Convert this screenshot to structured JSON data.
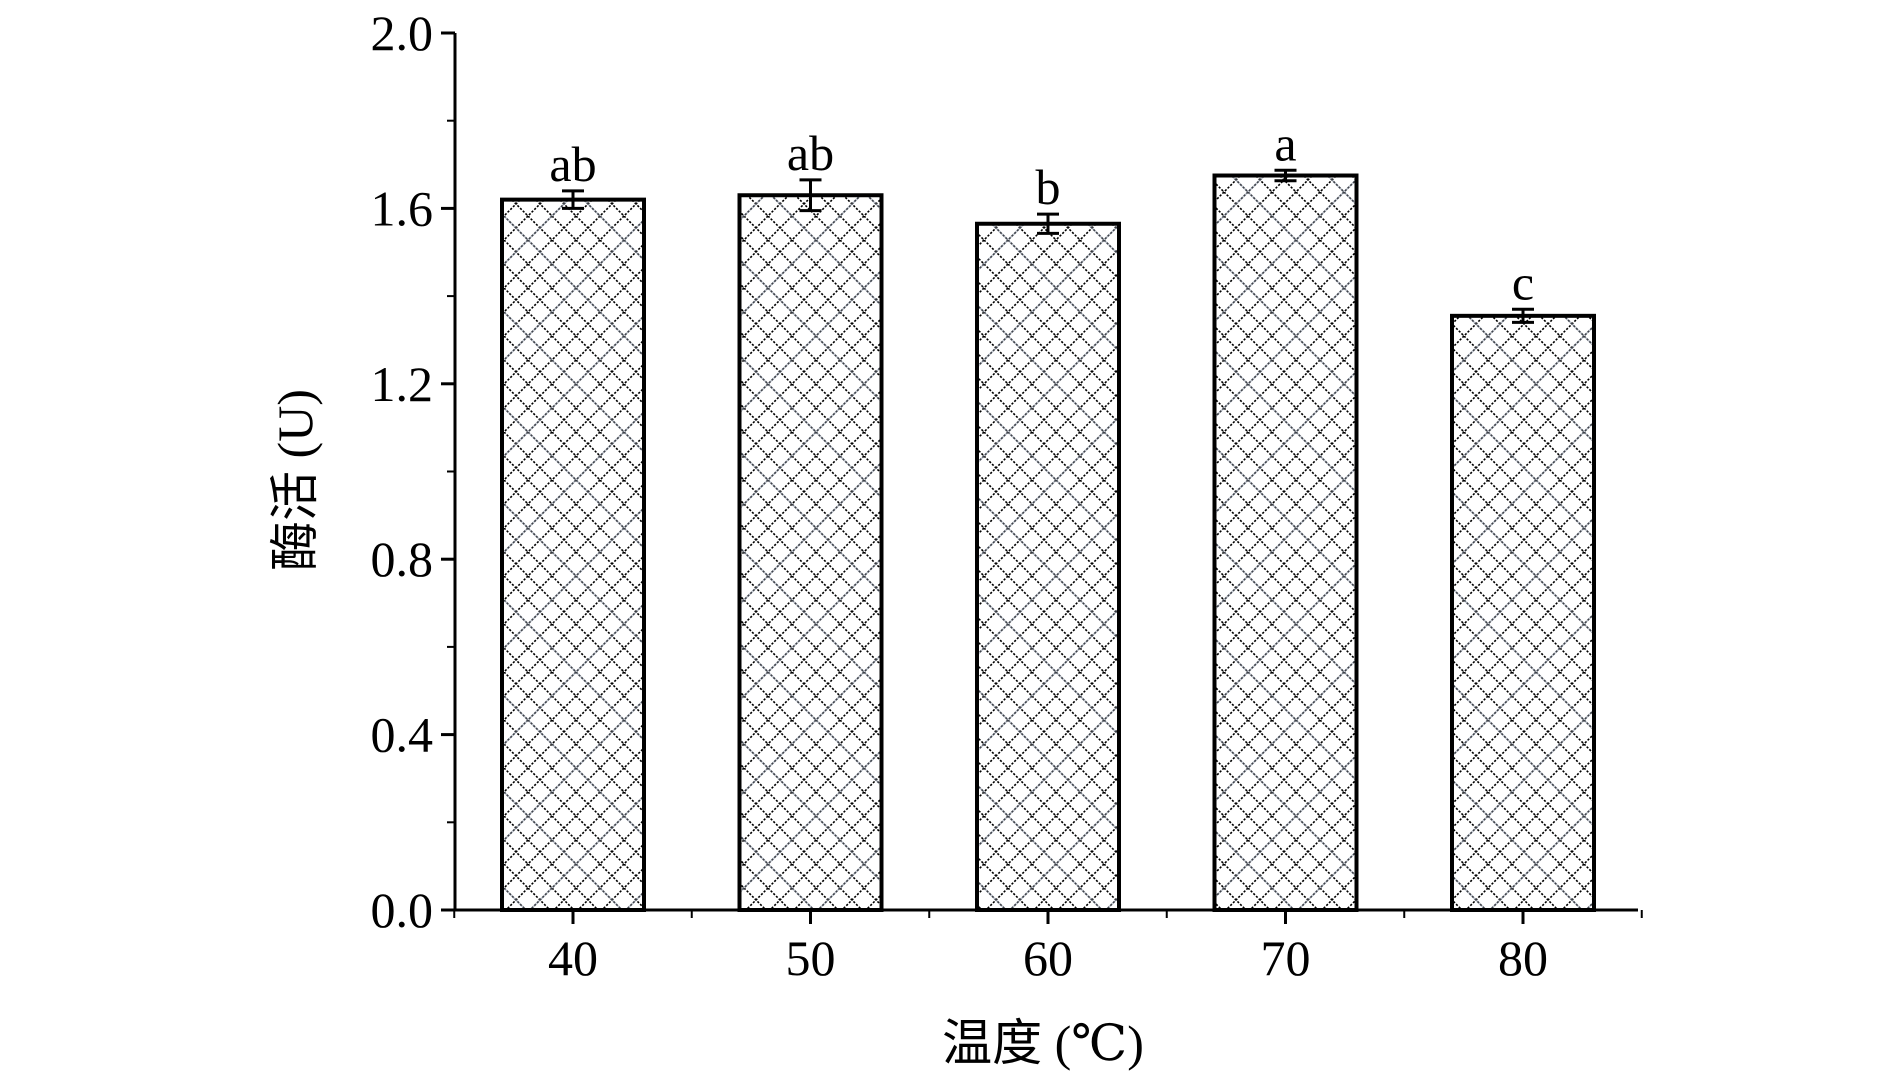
{
  "chart_data": {
    "type": "bar",
    "title": "",
    "xlabel": "温度 (℃)",
    "ylabel": "酶活 (U)",
    "categories": [
      "40",
      "50",
      "60",
      "70",
      "80"
    ],
    "values": [
      1.62,
      1.63,
      1.565,
      1.675,
      1.355
    ],
    "errors": [
      0.02,
      0.035,
      0.022,
      0.012,
      0.015
    ],
    "significance_labels": [
      "ab",
      "ab",
      "b",
      "a",
      "c"
    ],
    "ylim": [
      0.0,
      2.0
    ],
    "yticks": [
      "0.0",
      "0.4",
      "0.8",
      "1.2",
      "1.6",
      "2.0"
    ],
    "grid": false,
    "legend": "none",
    "bar_fill": "crosshatch",
    "colors": {
      "bar_stroke": "#000000",
      "hatch": "#000000",
      "hatch_faint": "#8a94a6",
      "axis": "#000000",
      "background": "#ffffff"
    }
  }
}
